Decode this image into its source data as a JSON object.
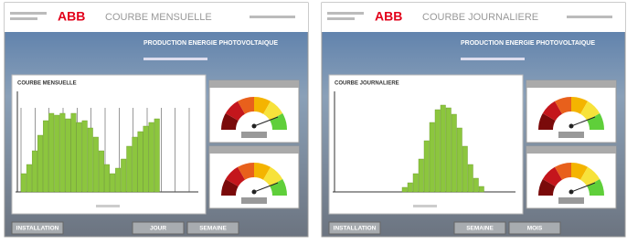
{
  "panels": [
    {
      "logo": "ABB",
      "title": "COURBE MENSUELLE",
      "heading": "PRODUCTION ENERGIE PHOTOVOLTAIQUE",
      "chart": {
        "title": "COURBE MENSUELLE",
        "ylim": [
          0,
          100
        ],
        "values": [
          20,
          30,
          45,
          62,
          78,
          86,
          84,
          86,
          80,
          86,
          76,
          78,
          70,
          60,
          45,
          30,
          20,
          26,
          36,
          50,
          60,
          66,
          72,
          76,
          80
        ]
      },
      "buttons": [
        "INSTALLATION",
        "JOUR",
        "SEMAINE"
      ]
    },
    {
      "logo": "ABB",
      "title": "COURBE JOURNALIERE",
      "heading": "PRODUCTION ENERGIE PHOTOVOLTAIQUE",
      "chart": {
        "title": "COURBE JOURNALIERE",
        "ylim": [
          0,
          100
        ],
        "values": [
          5,
          10,
          20,
          36,
          56,
          76,
          90,
          95,
          92,
          85,
          70,
          50,
          30,
          15,
          6
        ]
      },
      "buttons": [
        "INSTALLATION",
        "SEMAINE",
        "MOIS"
      ]
    }
  ]
}
